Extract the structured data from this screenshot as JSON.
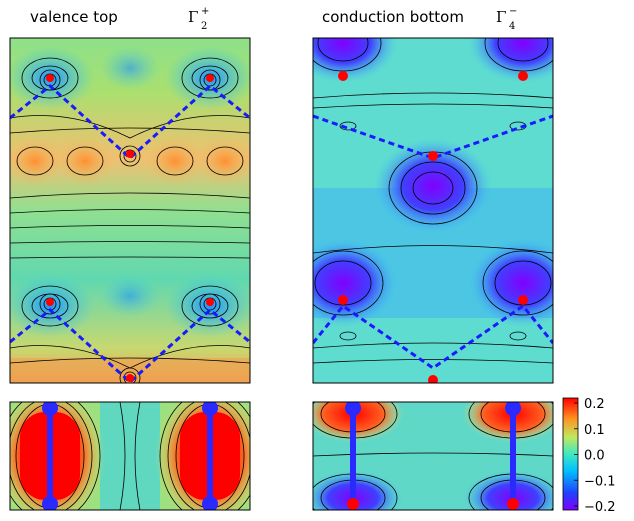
{
  "panels": [
    {
      "title": "valence top",
      "symbol": "Γ",
      "sub": "2",
      "sup": "+"
    },
    {
      "title": "conduction bottom",
      "symbol": "Γ",
      "sub": "4",
      "sup": "−"
    }
  ],
  "colorbar": {
    "lim": [
      -0.2,
      0.2
    ],
    "ticks": [
      0.2,
      0.1,
      {
        "value": 0,
        "label": "0.0"
      },
      {
        "value": -0.1,
        "label": "−0.1"
      },
      {
        "value": -0.2,
        "label": "−0.2"
      }
    ]
  }
}
